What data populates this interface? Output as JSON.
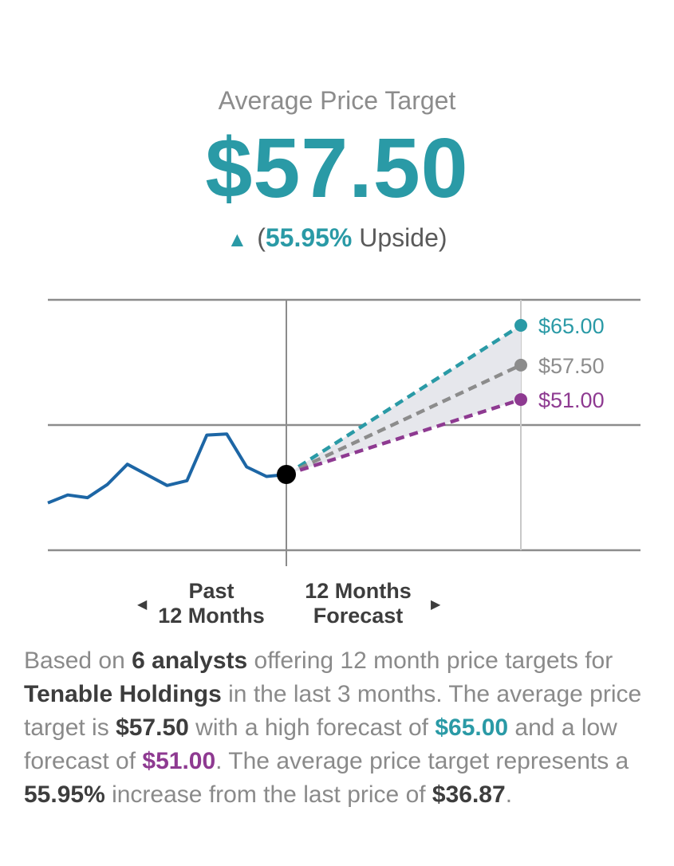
{
  "header": {
    "label": "Average Price Target",
    "price": "$57.50",
    "upside_arrow": "▲",
    "upside_open": "(",
    "upside_pct": "55.95%",
    "upside_word": " Upside)"
  },
  "colors": {
    "accent": "#2a9aa6",
    "low": "#8e3a91",
    "average": "#8c8c8c",
    "history": "#1d66a5",
    "grid": "#8c8c8c"
  },
  "chart_data": {
    "type": "line",
    "history": {
      "name": "Past 12 Months",
      "values": [
        31.5,
        33.0,
        32.5,
        35.0,
        38.8,
        36.8,
        34.8,
        35.7,
        44.3,
        44.5,
        38.3,
        36.5,
        36.87
      ]
    },
    "last_price": 36.87,
    "forecast": [
      {
        "name": "High",
        "label": "$65.00",
        "value": 65.0,
        "color": "#2a9aa6"
      },
      {
        "name": "Average",
        "label": "$57.50",
        "value": 57.5,
        "color": "#8c8c8c"
      },
      {
        "name": "Low",
        "label": "$51.00",
        "value": 51.0,
        "color": "#8e3a91"
      }
    ],
    "periods": {
      "past": [
        "Past",
        "12 Months"
      ],
      "forecast": [
        "12 Months",
        "Forecast"
      ]
    },
    "grid": true
  },
  "description": {
    "p1": "Based on ",
    "analysts": "6 analysts",
    "p2": " offering 12 month price targets for ",
    "company": "Tenable Holdings",
    "p3": " in the last 3 months. The average price target is ",
    "avg": "$57.50",
    "p4": " with a high forecast of ",
    "high": "$65.00",
    "p5": " and a low forecast of ",
    "low": "$51.00",
    "p6": ". The average price target represents a ",
    "pct": "55.95%",
    "p7": " increase from the last price of ",
    "last": "$36.87",
    "p8": "."
  }
}
